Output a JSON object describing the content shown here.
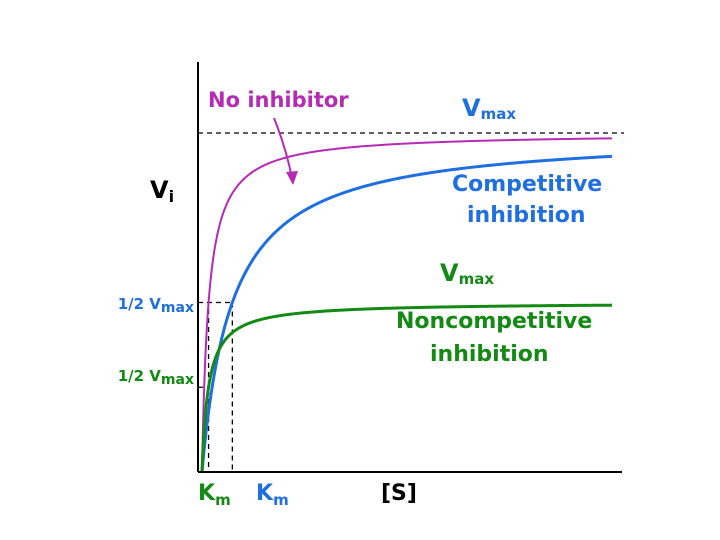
{
  "chart_data": {
    "type": "line",
    "xlabel": "[S]",
    "ylabel": "Vi",
    "ylabel_main": "V",
    "ylabel_sub": "i",
    "grid": false,
    "legend": "none",
    "colors": {
      "no_inhibitor": "#b52bb5",
      "competitive": "#1f6fe0",
      "noncompetitive": "#138a13",
      "axis": "#000000"
    },
    "series": [
      {
        "key": "no_inhibitor",
        "name": "No inhibitor",
        "vmax": 1.0,
        "km": 0.16
      },
      {
        "key": "competitive",
        "name": "Competitive inhibition",
        "vmax": 1.0,
        "km": 0.74
      },
      {
        "key": "noncompetitive",
        "name": "Noncompetitive inhibition",
        "vmax": 0.5,
        "km": 0.16
      }
    ],
    "annotations": {
      "no_inhibitor": "No inhibitor",
      "vmax_text": "V",
      "vmax_sub": "max",
      "competitive_line1": "Competitive",
      "competitive_line2": "inhibition",
      "noncompetitive_line1": "Noncompetitive",
      "noncompetitive_line2": "inhibition",
      "half_prefix": "1/2 V",
      "half_sub": "max",
      "km_main": "K",
      "km_sub": "m"
    }
  }
}
